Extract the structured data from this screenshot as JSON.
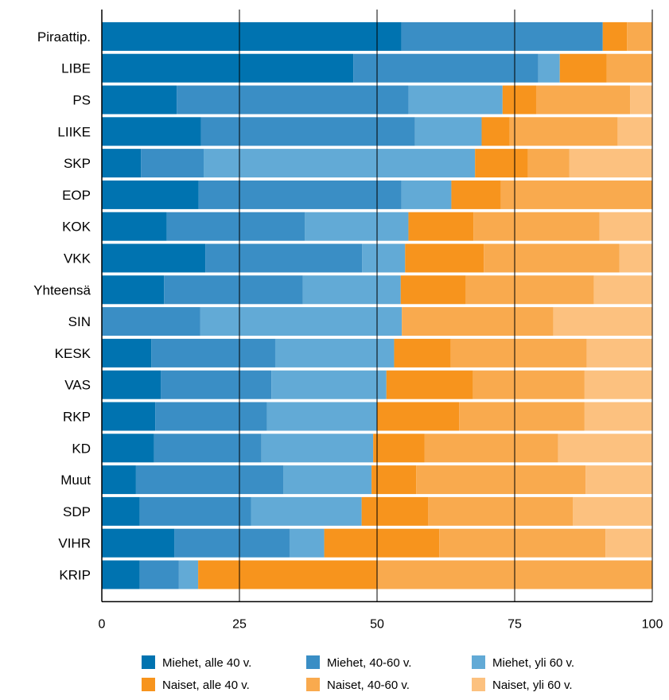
{
  "chart_data": {
    "type": "bar",
    "orientation": "horizontal",
    "stacked": true,
    "title": "",
    "xlabel": "",
    "ylabel": "",
    "xlim": [
      0,
      100
    ],
    "xticks": [
      "0",
      "25",
      "50",
      "75",
      "100"
    ],
    "grid": false,
    "legend": {
      "placement": "bottom",
      "columns": 3
    },
    "categories": [
      "Piraattip.",
      "LIBE",
      "PS",
      "LIIKE",
      "SKP",
      "EOP",
      "KOK",
      "VKK",
      "Yhteensä",
      "SIN",
      "KESK",
      "VAS",
      "RKP",
      "KD",
      "Muut",
      "SDP",
      "VIHR",
      "KRIP"
    ],
    "series": [
      {
        "name": "Miehet, alle 40 v.",
        "color": "#0073b0",
        "values": [
          54.4,
          45.7,
          13.6,
          18.0,
          7.1,
          17.6,
          11.8,
          18.8,
          11.3,
          0,
          9.0,
          10.7,
          9.7,
          9.5,
          6.2,
          6.9,
          13.2,
          6.9
        ]
      },
      {
        "name": "Miehet, 40-60 v.",
        "color": "#3a8ec5",
        "values": [
          36.6,
          33.6,
          42.1,
          38.9,
          11.4,
          36.8,
          25.1,
          28.5,
          25.2,
          17.9,
          22.5,
          20.1,
          20.3,
          19.5,
          26.8,
          20.2,
          20.9,
          7.1
        ]
      },
      {
        "name": "Miehet, yli 60 v.",
        "color": "#62aad6",
        "values": [
          0,
          3.9,
          17.1,
          12.1,
          49.3,
          9.1,
          18.8,
          7.8,
          17.8,
          36.6,
          21.6,
          20.9,
          20.0,
          20.3,
          16.0,
          20.1,
          6.3,
          3.5
        ]
      },
      {
        "name": "Naiset, alle 40 v.",
        "color": "#f7941d",
        "values": [
          4.4,
          8.5,
          6.1,
          5.1,
          9.6,
          9.0,
          11.8,
          14.3,
          11.8,
          0,
          10.3,
          15.7,
          14.9,
          9.3,
          8.1,
          12.1,
          20.9,
          32.5
        ]
      },
      {
        "name": "Naiset, 40-60 v.",
        "color": "#f9aa4e",
        "values": [
          4.6,
          8.3,
          17.1,
          19.6,
          7.5,
          27.5,
          22.9,
          24.6,
          23.3,
          27.5,
          24.7,
          20.3,
          22.8,
          24.3,
          30.8,
          26.3,
          30.2,
          50.0
        ]
      },
      {
        "name": "Naiset, yli 60 v.",
        "color": "#fcc17f",
        "values": [
          0,
          0,
          4.0,
          6.3,
          15.1,
          0,
          9.6,
          6.0,
          10.6,
          18.0,
          11.9,
          12.3,
          12.3,
          17.1,
          12.1,
          14.4,
          8.5,
          0
        ]
      }
    ]
  }
}
